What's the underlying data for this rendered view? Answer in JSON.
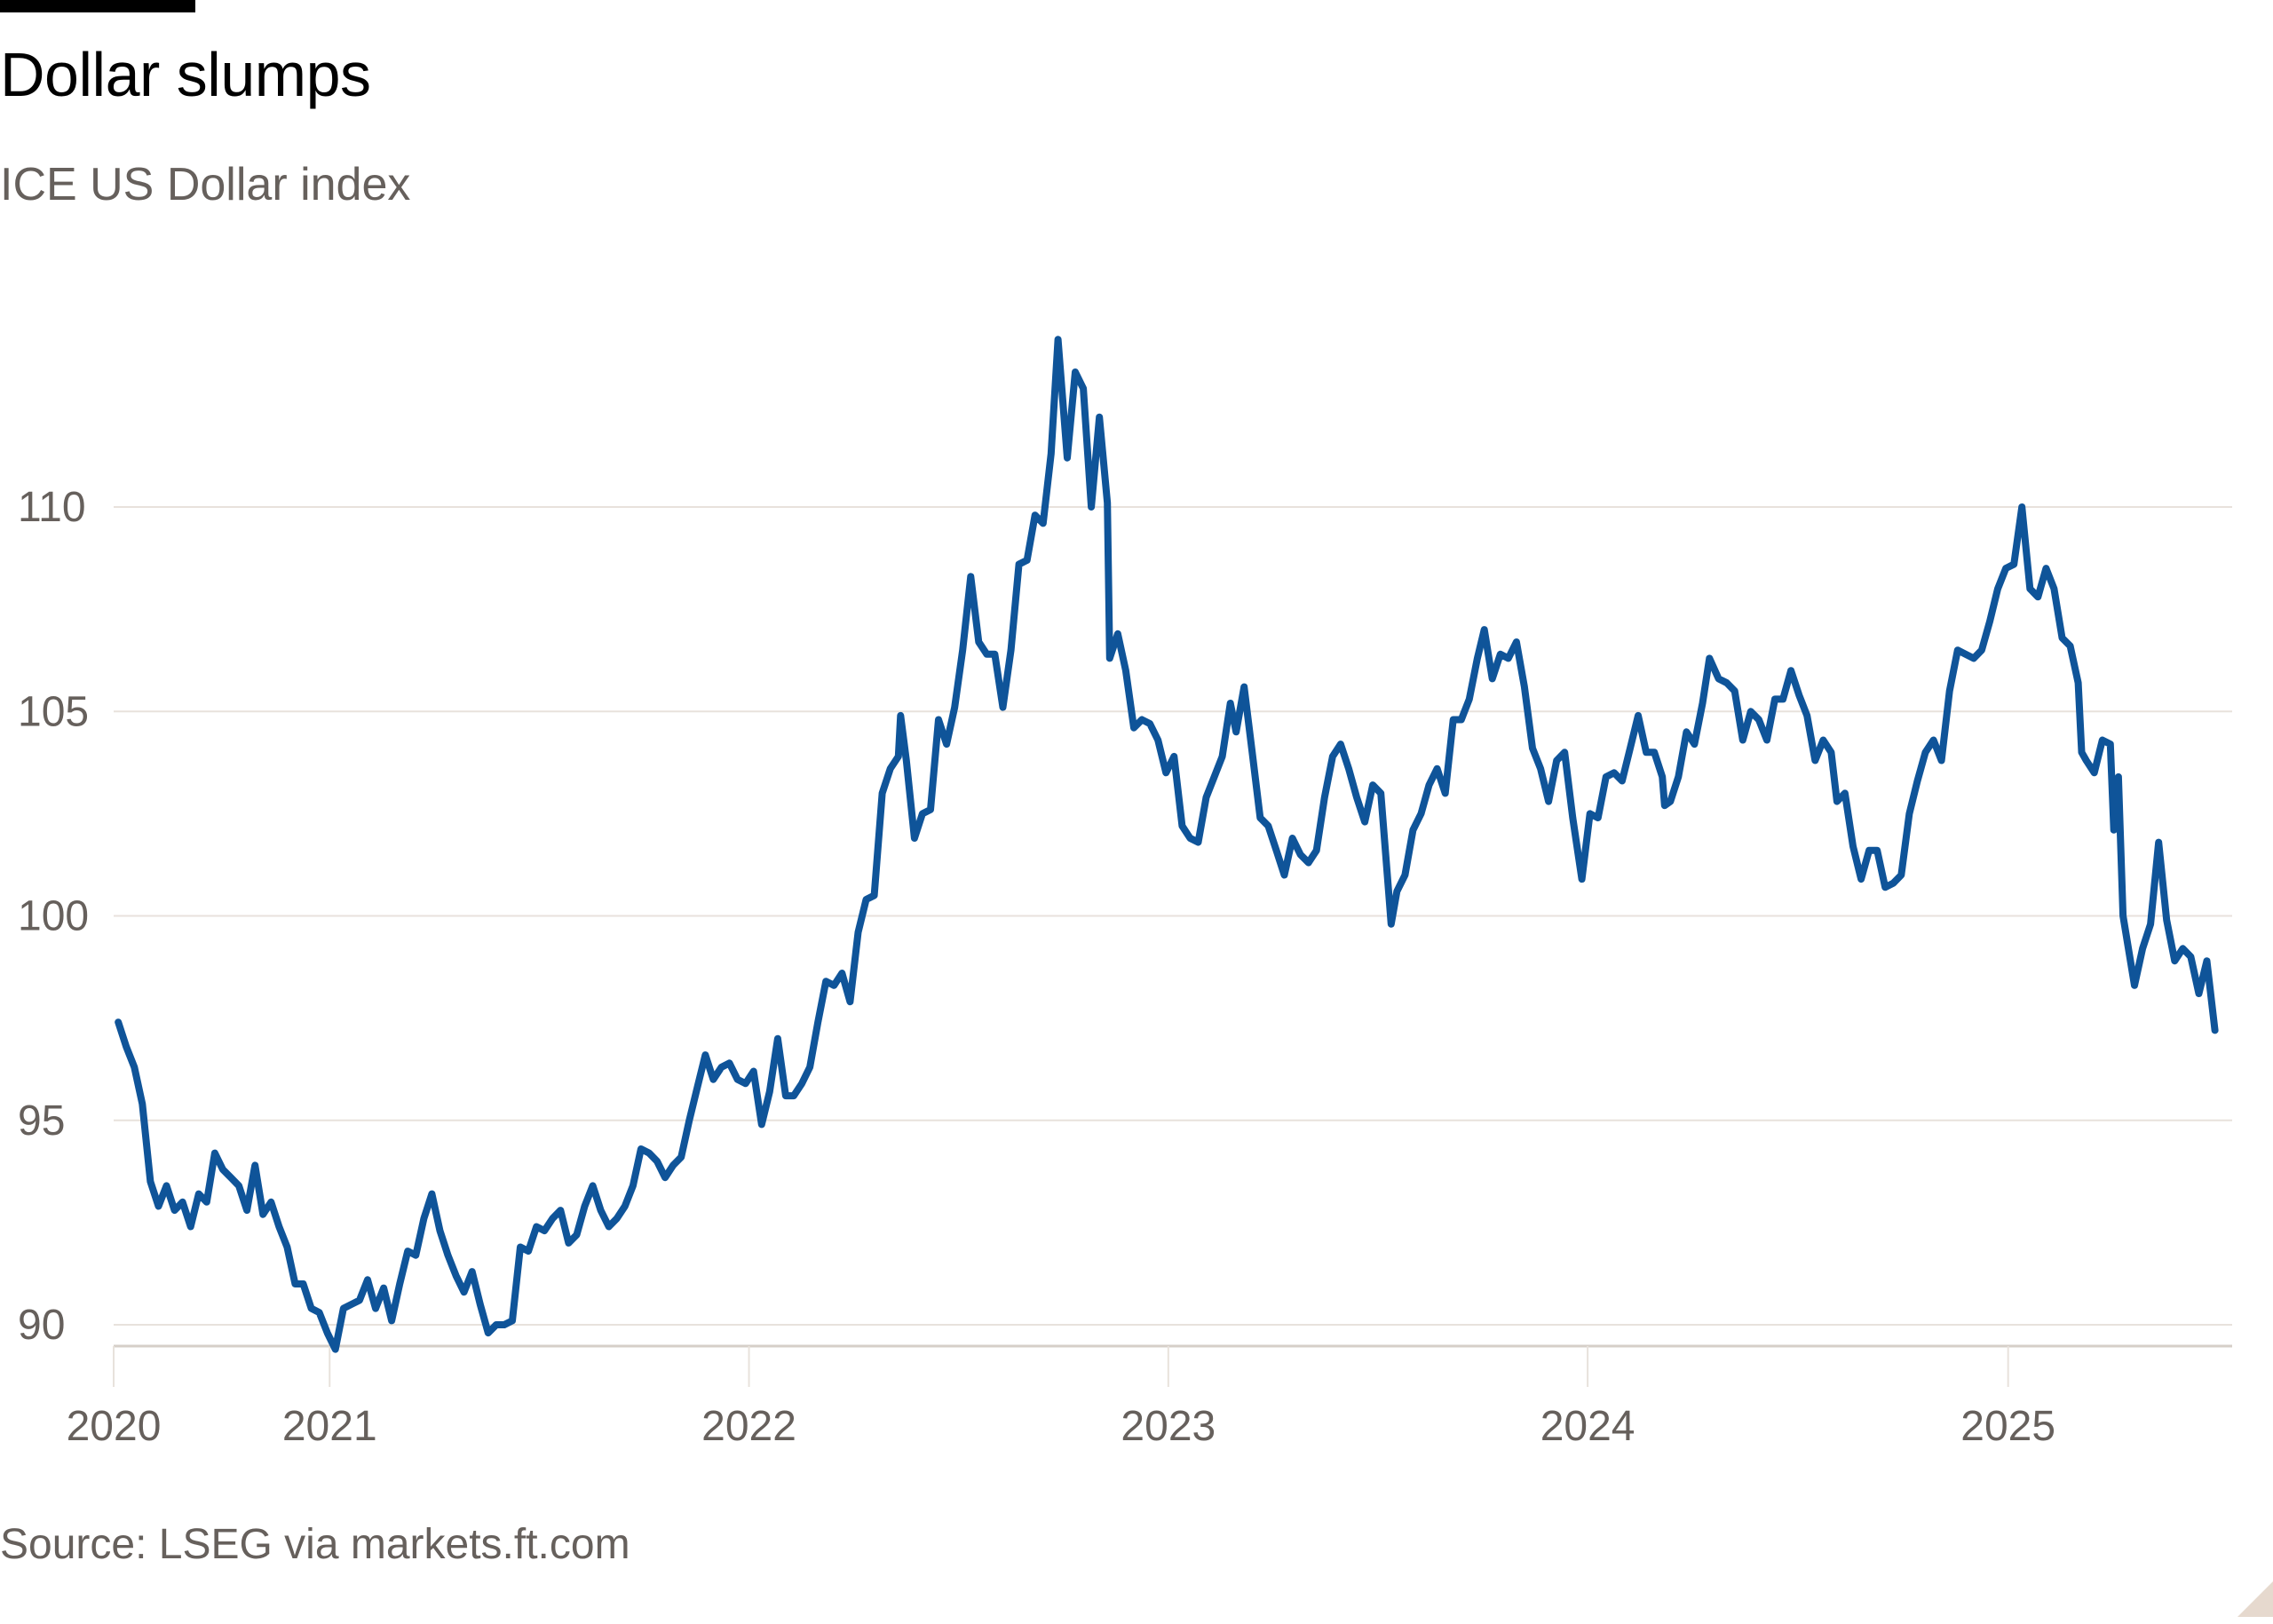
{
  "header": {
    "title": "Dollar slumps",
    "subtitle": "ICE US Dollar index"
  },
  "footer": {
    "source": "Source: LSEG via markets.ft.com"
  },
  "colors": {
    "line": "#0f5499",
    "grid": "#e8e2dc",
    "axis": "#d6cfc8",
    "text": "#66605c"
  },
  "chart_data": {
    "type": "line",
    "title": "Dollar slumps",
    "subtitle": "ICE US Dollar index",
    "xlabel": "",
    "ylabel": "",
    "xlim": [
      "2020-06-27",
      "2025-07-15"
    ],
    "ylim": [
      89,
      115
    ],
    "grid": true,
    "x_ticks": [
      {
        "date": "2020-06-27",
        "label": "2020"
      },
      {
        "date": "2021-01-01",
        "label": "2021"
      },
      {
        "date": "2022-01-01",
        "label": "2022"
      },
      {
        "date": "2023-01-01",
        "label": "2023"
      },
      {
        "date": "2024-01-01",
        "label": "2024"
      },
      {
        "date": "2025-01-01",
        "label": "2025"
      }
    ],
    "y_ticks": [
      90,
      95,
      100,
      105,
      110
    ],
    "series": [
      {
        "points": [
          [
            "2020-07-01",
            97.4
          ],
          [
            "2020-07-08",
            96.8
          ],
          [
            "2020-07-15",
            96.3
          ],
          [
            "2020-07-22",
            95.4
          ],
          [
            "2020-07-29",
            93.5
          ],
          [
            "2020-08-05",
            92.9
          ],
          [
            "2020-08-12",
            93.4
          ],
          [
            "2020-08-19",
            92.8
          ],
          [
            "2020-08-26",
            93.0
          ],
          [
            "2020-09-02",
            92.4
          ],
          [
            "2020-09-09",
            93.2
          ],
          [
            "2020-09-16",
            93.0
          ],
          [
            "2020-09-23",
            94.2
          ],
          [
            "2020-09-30",
            93.8
          ],
          [
            "2020-10-07",
            93.6
          ],
          [
            "2020-10-14",
            93.4
          ],
          [
            "2020-10-21",
            92.8
          ],
          [
            "2020-10-28",
            93.9
          ],
          [
            "2020-11-04",
            92.7
          ],
          [
            "2020-11-11",
            93.0
          ],
          [
            "2020-11-18",
            92.4
          ],
          [
            "2020-11-25",
            91.9
          ],
          [
            "2020-12-02",
            91.0
          ],
          [
            "2020-12-09",
            91.0
          ],
          [
            "2020-12-16",
            90.4
          ],
          [
            "2020-12-23",
            90.3
          ],
          [
            "2020-12-30",
            89.8
          ],
          [
            "2021-01-06",
            89.4
          ],
          [
            "2021-01-13",
            90.4
          ],
          [
            "2021-01-20",
            90.5
          ],
          [
            "2021-01-27",
            90.6
          ],
          [
            "2021-02-03",
            91.1
          ],
          [
            "2021-02-10",
            90.4
          ],
          [
            "2021-02-17",
            90.9
          ],
          [
            "2021-02-24",
            90.1
          ],
          [
            "2021-03-03",
            91.0
          ],
          [
            "2021-03-10",
            91.8
          ],
          [
            "2021-03-17",
            91.7
          ],
          [
            "2021-03-24",
            92.6
          ],
          [
            "2021-03-31",
            93.2
          ],
          [
            "2021-04-07",
            92.3
          ],
          [
            "2021-04-14",
            91.7
          ],
          [
            "2021-04-21",
            91.2
          ],
          [
            "2021-04-28",
            90.8
          ],
          [
            "2021-05-05",
            91.3
          ],
          [
            "2021-05-12",
            90.5
          ],
          [
            "2021-05-19",
            89.8
          ],
          [
            "2021-05-26",
            90.0
          ],
          [
            "2021-06-02",
            90.0
          ],
          [
            "2021-06-09",
            90.1
          ],
          [
            "2021-06-16",
            91.9
          ],
          [
            "2021-06-23",
            91.8
          ],
          [
            "2021-06-30",
            92.4
          ],
          [
            "2021-07-07",
            92.3
          ],
          [
            "2021-07-14",
            92.6
          ],
          [
            "2021-07-21",
            92.8
          ],
          [
            "2021-07-28",
            92.0
          ],
          [
            "2021-08-04",
            92.2
          ],
          [
            "2021-08-11",
            92.9
          ],
          [
            "2021-08-18",
            93.4
          ],
          [
            "2021-08-25",
            92.8
          ],
          [
            "2021-09-01",
            92.4
          ],
          [
            "2021-09-08",
            92.6
          ],
          [
            "2021-09-15",
            92.9
          ],
          [
            "2021-09-22",
            93.4
          ],
          [
            "2021-09-29",
            94.3
          ],
          [
            "2021-10-06",
            94.2
          ],
          [
            "2021-10-13",
            94.0
          ],
          [
            "2021-10-20",
            93.6
          ],
          [
            "2021-10-27",
            93.9
          ],
          [
            "2021-11-03",
            94.1
          ],
          [
            "2021-11-10",
            95.0
          ],
          [
            "2021-11-17",
            95.8
          ],
          [
            "2021-11-24",
            96.6
          ],
          [
            "2021-12-01",
            96.0
          ],
          [
            "2021-12-08",
            96.3
          ],
          [
            "2021-12-15",
            96.4
          ],
          [
            "2021-12-22",
            96.0
          ],
          [
            "2021-12-29",
            95.9
          ],
          [
            "2022-01-05",
            96.2
          ],
          [
            "2022-01-12",
            94.9
          ],
          [
            "2022-01-19",
            95.7
          ],
          [
            "2022-01-26",
            97.0
          ],
          [
            "2022-02-02",
            95.6
          ],
          [
            "2022-02-09",
            95.6
          ],
          [
            "2022-02-16",
            95.9
          ],
          [
            "2022-02-23",
            96.3
          ],
          [
            "2022-03-02",
            97.4
          ],
          [
            "2022-03-09",
            98.4
          ],
          [
            "2022-03-16",
            98.3
          ],
          [
            "2022-03-23",
            98.6
          ],
          [
            "2022-03-30",
            97.9
          ],
          [
            "2022-04-06",
            99.6
          ],
          [
            "2022-04-13",
            100.4
          ],
          [
            "2022-04-20",
            100.5
          ],
          [
            "2022-04-27",
            103.0
          ],
          [
            "2022-05-04",
            103.6
          ],
          [
            "2022-05-11",
            103.9
          ],
          [
            "2022-05-13",
            104.9
          ],
          [
            "2022-05-18",
            103.8
          ],
          [
            "2022-05-25",
            101.9
          ],
          [
            "2022-06-01",
            102.5
          ],
          [
            "2022-06-08",
            102.6
          ],
          [
            "2022-06-15",
            104.8
          ],
          [
            "2022-06-22",
            104.2
          ],
          [
            "2022-06-29",
            105.1
          ],
          [
            "2022-07-06",
            106.5
          ],
          [
            "2022-07-13",
            108.3
          ],
          [
            "2022-07-20",
            106.7
          ],
          [
            "2022-07-27",
            106.4
          ],
          [
            "2022-08-03",
            106.4
          ],
          [
            "2022-08-10",
            105.1
          ],
          [
            "2022-08-17",
            106.5
          ],
          [
            "2022-08-24",
            108.6
          ],
          [
            "2022-08-31",
            108.7
          ],
          [
            "2022-09-07",
            109.8
          ],
          [
            "2022-09-14",
            109.6
          ],
          [
            "2022-09-21",
            111.3
          ],
          [
            "2022-09-27",
            114.1
          ],
          [
            "2022-10-05",
            111.2
          ],
          [
            "2022-10-12",
            113.3
          ],
          [
            "2022-10-19",
            112.9
          ],
          [
            "2022-10-26",
            110.0
          ],
          [
            "2022-11-02",
            112.2
          ],
          [
            "2022-11-09",
            110.1
          ],
          [
            "2022-11-11",
            106.3
          ],
          [
            "2022-11-18",
            106.9
          ],
          [
            "2022-11-25",
            106.0
          ],
          [
            "2022-12-02",
            104.6
          ],
          [
            "2022-12-09",
            104.8
          ],
          [
            "2022-12-16",
            104.7
          ],
          [
            "2022-12-23",
            104.3
          ],
          [
            "2022-12-30",
            103.5
          ],
          [
            "2023-01-06",
            103.9
          ],
          [
            "2023-01-13",
            102.2
          ],
          [
            "2023-01-20",
            101.9
          ],
          [
            "2023-01-27",
            101.8
          ],
          [
            "2023-02-03",
            102.9
          ],
          [
            "2023-02-10",
            103.4
          ],
          [
            "2023-02-17",
            103.9
          ],
          [
            "2023-02-24",
            105.2
          ],
          [
            "2023-03-01",
            104.5
          ],
          [
            "2023-03-08",
            105.6
          ],
          [
            "2023-03-15",
            104.0
          ],
          [
            "2023-03-22",
            102.4
          ],
          [
            "2023-03-29",
            102.2
          ],
          [
            "2023-04-05",
            101.6
          ],
          [
            "2023-04-12",
            101.0
          ],
          [
            "2023-04-19",
            101.9
          ],
          [
            "2023-04-26",
            101.5
          ],
          [
            "2023-05-03",
            101.3
          ],
          [
            "2023-05-10",
            101.6
          ],
          [
            "2023-05-17",
            102.9
          ],
          [
            "2023-05-24",
            103.9
          ],
          [
            "2023-05-31",
            104.2
          ],
          [
            "2023-06-07",
            103.6
          ],
          [
            "2023-06-14",
            102.9
          ],
          [
            "2023-06-21",
            102.3
          ],
          [
            "2023-06-28",
            103.2
          ],
          [
            "2023-07-05",
            103.0
          ],
          [
            "2023-07-12",
            100.5
          ],
          [
            "2023-07-14",
            99.8
          ],
          [
            "2023-07-19",
            100.6
          ],
          [
            "2023-07-26",
            101.0
          ],
          [
            "2023-08-02",
            102.1
          ],
          [
            "2023-08-09",
            102.5
          ],
          [
            "2023-08-16",
            103.2
          ],
          [
            "2023-08-23",
            103.6
          ],
          [
            "2023-08-30",
            103.0
          ],
          [
            "2023-09-06",
            104.8
          ],
          [
            "2023-09-13",
            104.8
          ],
          [
            "2023-09-20",
            105.3
          ],
          [
            "2023-09-27",
            106.3
          ],
          [
            "2023-10-03",
            107.0
          ],
          [
            "2023-10-10",
            105.8
          ],
          [
            "2023-10-17",
            106.4
          ],
          [
            "2023-10-24",
            106.3
          ],
          [
            "2023-10-31",
            106.7
          ],
          [
            "2023-11-07",
            105.6
          ],
          [
            "2023-11-14",
            104.1
          ],
          [
            "2023-11-21",
            103.6
          ],
          [
            "2023-11-28",
            102.8
          ],
          [
            "2023-12-05",
            103.8
          ],
          [
            "2023-12-12",
            104.0
          ],
          [
            "2023-12-19",
            102.4
          ],
          [
            "2023-12-27",
            100.9
          ],
          [
            "2024-01-03",
            102.5
          ],
          [
            "2024-01-10",
            102.4
          ],
          [
            "2024-01-17",
            103.4
          ],
          [
            "2024-01-24",
            103.5
          ],
          [
            "2024-01-31",
            103.3
          ],
          [
            "2024-02-07",
            104.1
          ],
          [
            "2024-02-14",
            104.9
          ],
          [
            "2024-02-21",
            104.0
          ],
          [
            "2024-02-28",
            104.0
          ],
          [
            "2024-03-06",
            103.4
          ],
          [
            "2024-03-08",
            102.7
          ],
          [
            "2024-03-13",
            102.8
          ],
          [
            "2024-03-20",
            103.4
          ],
          [
            "2024-03-27",
            104.5
          ],
          [
            "2024-04-03",
            104.2
          ],
          [
            "2024-04-10",
            105.2
          ],
          [
            "2024-04-16",
            106.3
          ],
          [
            "2024-04-24",
            105.8
          ],
          [
            "2024-05-01",
            105.7
          ],
          [
            "2024-05-08",
            105.5
          ],
          [
            "2024-05-15",
            104.3
          ],
          [
            "2024-05-22",
            105.0
          ],
          [
            "2024-05-29",
            104.8
          ],
          [
            "2024-06-05",
            104.3
          ],
          [
            "2024-06-12",
            105.3
          ],
          [
            "2024-06-19",
            105.3
          ],
          [
            "2024-06-26",
            106.0
          ],
          [
            "2024-07-03",
            105.4
          ],
          [
            "2024-07-10",
            104.9
          ],
          [
            "2024-07-17",
            103.8
          ],
          [
            "2024-07-24",
            104.3
          ],
          [
            "2024-07-31",
            104.0
          ],
          [
            "2024-08-05",
            102.8
          ],
          [
            "2024-08-12",
            103.0
          ],
          [
            "2024-08-19",
            101.7
          ],
          [
            "2024-08-26",
            100.9
          ],
          [
            "2024-09-02",
            101.6
          ],
          [
            "2024-09-09",
            101.6
          ],
          [
            "2024-09-16",
            100.7
          ],
          [
            "2024-09-23",
            100.8
          ],
          [
            "2024-09-30",
            101.0
          ],
          [
            "2024-10-07",
            102.5
          ],
          [
            "2024-10-14",
            103.3
          ],
          [
            "2024-10-21",
            104.0
          ],
          [
            "2024-10-28",
            104.3
          ],
          [
            "2024-11-04",
            103.8
          ],
          [
            "2024-11-11",
            105.5
          ],
          [
            "2024-11-18",
            106.5
          ],
          [
            "2024-11-25",
            106.4
          ],
          [
            "2024-12-02",
            106.3
          ],
          [
            "2024-12-09",
            106.5
          ],
          [
            "2024-12-16",
            107.2
          ],
          [
            "2024-12-23",
            108.0
          ],
          [
            "2024-12-30",
            108.5
          ],
          [
            "2025-01-06",
            108.6
          ],
          [
            "2025-01-13",
            110.0
          ],
          [
            "2025-01-20",
            108.0
          ],
          [
            "2025-01-27",
            107.8
          ],
          [
            "2025-02-03",
            108.5
          ],
          [
            "2025-02-10",
            108.0
          ],
          [
            "2025-02-17",
            106.8
          ],
          [
            "2025-02-24",
            106.6
          ],
          [
            "2025-03-03",
            105.7
          ],
          [
            "2025-03-06",
            104.0
          ],
          [
            "2025-03-10",
            103.8
          ],
          [
            "2025-03-17",
            103.5
          ],
          [
            "2025-03-24",
            104.3
          ],
          [
            "2025-03-31",
            104.2
          ],
          [
            "2025-04-03",
            102.1
          ],
          [
            "2025-04-07",
            103.4
          ],
          [
            "2025-04-11",
            100.0
          ],
          [
            "2025-04-21",
            98.3
          ],
          [
            "2025-04-28",
            99.2
          ],
          [
            "2025-05-05",
            99.8
          ],
          [
            "2025-05-12",
            101.8
          ],
          [
            "2025-05-19",
            99.9
          ],
          [
            "2025-05-26",
            98.9
          ],
          [
            "2025-06-02",
            99.2
          ],
          [
            "2025-06-09",
            99.0
          ],
          [
            "2025-06-16",
            98.1
          ],
          [
            "2025-06-23",
            98.9
          ],
          [
            "2025-06-30",
            97.2
          ]
        ]
      }
    ]
  }
}
